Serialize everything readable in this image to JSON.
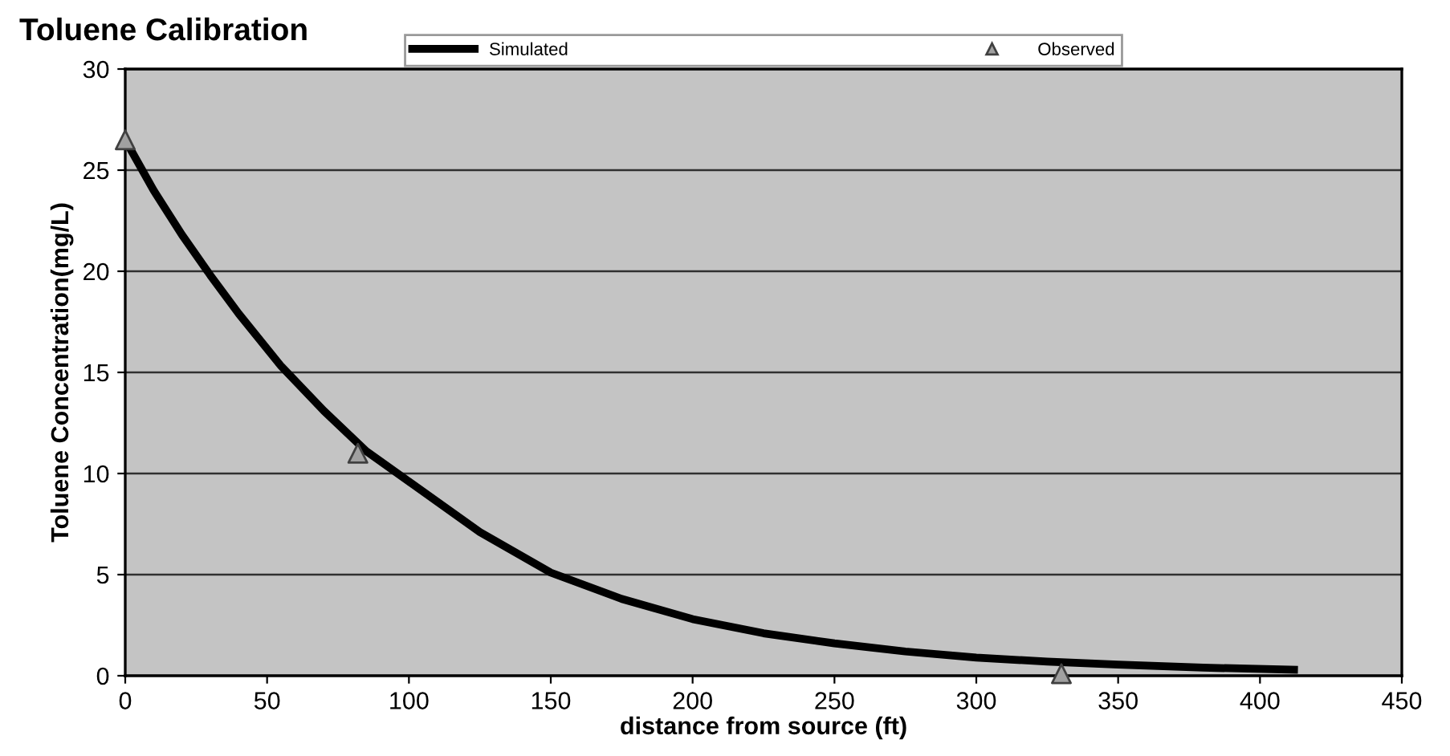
{
  "chart_data": {
    "type": "line",
    "title": "Toluene Calibration",
    "xlabel": "distance from source (ft)",
    "ylabel": "Toluene Concentration(mg/L)",
    "series": [
      {
        "name": "Simulated",
        "color": "#000000",
        "marker": "none",
        "line_style": "solid",
        "x": [
          0,
          10,
          20,
          30,
          40,
          55,
          70,
          85,
          100,
          125,
          150,
          175,
          200,
          225,
          250,
          275,
          300,
          325,
          350,
          380,
          412
        ],
        "values": [
          26.5,
          24.0,
          21.8,
          19.8,
          17.9,
          15.3,
          13.1,
          11.1,
          9.6,
          7.1,
          5.1,
          3.8,
          2.8,
          2.1,
          1.6,
          1.2,
          0.9,
          0.7,
          0.55,
          0.4,
          0.3
        ]
      },
      {
        "name": "Observed",
        "type": "scatter",
        "color": "#a0a0a0",
        "marker": "triangle",
        "x": [
          0,
          82,
          330
        ],
        "values": [
          26.5,
          11,
          0.1
        ]
      }
    ],
    "xlim": [
      0,
      450
    ],
    "xticks": [
      0,
      50,
      100,
      150,
      200,
      250,
      300,
      350,
      400,
      450
    ],
    "ylim": [
      0,
      30
    ],
    "yticks": [
      0,
      5,
      10,
      15,
      20,
      25,
      30
    ],
    "grid": "y",
    "legend": "top"
  }
}
